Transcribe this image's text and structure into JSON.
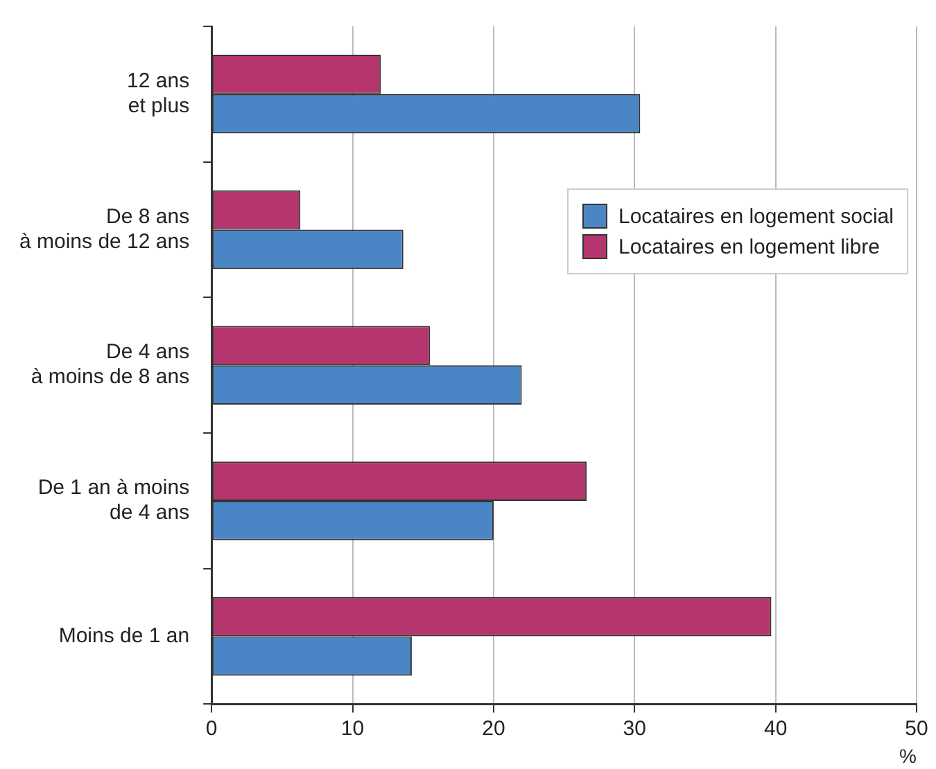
{
  "chart_data": {
    "type": "bar",
    "orientation": "horizontal",
    "xlabel": "%",
    "categories": [
      "12 ans\net plus",
      "De 8 ans\nà moins de 12 ans",
      "De 4 ans\nà moins de 8 ans",
      "De 1 an à moins\nde 4 ans",
      "Moins de 1 an"
    ],
    "series": [
      {
        "name": "Locataires en logement social",
        "color": "#4a86c5",
        "values": [
          30.4,
          13.6,
          22.0,
          20.0,
          14.2
        ]
      },
      {
        "name": "Locataires en logement libre",
        "color": "#b5366e",
        "values": [
          12.0,
          6.3,
          15.5,
          26.6,
          39.7
        ]
      }
    ],
    "xlim": [
      0,
      50
    ],
    "xticks": [
      0,
      10,
      20,
      30,
      40,
      50
    ],
    "grid": "x",
    "legend": "right"
  }
}
